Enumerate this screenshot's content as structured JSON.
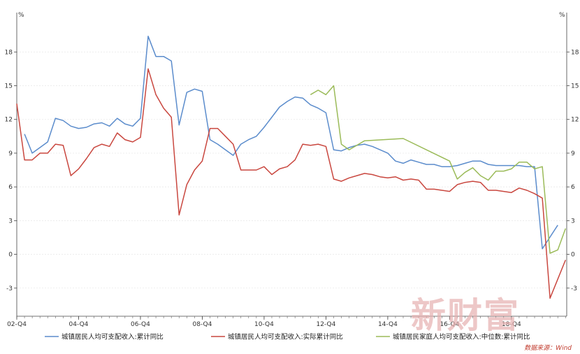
{
  "chart_data": {
    "type": "line",
    "y_unit_left": "%",
    "y_unit_right": "%",
    "ylim": [
      -5.5,
      21.5
    ],
    "yticks": [
      -3,
      0,
      3,
      6,
      9,
      12,
      15,
      18
    ],
    "xlim": [
      0,
      68
    ],
    "x_tick_labels": [
      "02-Q4",
      "04-Q4",
      "06-Q4",
      "08-Q4",
      "10-Q4",
      "12-Q4",
      "14-Q4",
      "16-Q4",
      "18-Q4"
    ],
    "x_tick_positions": [
      0,
      8,
      16,
      24,
      32,
      40,
      48,
      56,
      64
    ],
    "grid": true,
    "legend_position": "bottom",
    "series": [
      {
        "name": "城镇居民人均可支配收入:累计同比",
        "color": "#5b8ccc",
        "points": [
          [
            1,
            10.7
          ],
          [
            2,
            9.0
          ],
          [
            3,
            9.5
          ],
          [
            4,
            10.0
          ],
          [
            5,
            12.1
          ],
          [
            6,
            11.9
          ],
          [
            7,
            11.4
          ],
          [
            8,
            11.2
          ],
          [
            9,
            11.3
          ],
          [
            10,
            11.6
          ],
          [
            11,
            11.7
          ],
          [
            12,
            11.4
          ],
          [
            13,
            12.1
          ],
          [
            14,
            11.6
          ],
          [
            15,
            11.4
          ],
          [
            16,
            12.1
          ],
          [
            17,
            19.4
          ],
          [
            18,
            17.6
          ],
          [
            19,
            17.6
          ],
          [
            20,
            17.2
          ],
          [
            21,
            11.5
          ],
          [
            22,
            14.4
          ],
          [
            23,
            14.7
          ],
          [
            24,
            14.5
          ],
          [
            25,
            10.2
          ],
          [
            26,
            9.8
          ],
          [
            27,
            9.3
          ],
          [
            28,
            8.8
          ],
          [
            29,
            9.8
          ],
          [
            30,
            10.2
          ],
          [
            31,
            10.5
          ],
          [
            32,
            11.3
          ],
          [
            33,
            12.2
          ],
          [
            34,
            13.1
          ],
          [
            35,
            13.6
          ],
          [
            36,
            14.0
          ],
          [
            37,
            13.9
          ],
          [
            38,
            13.3
          ],
          [
            39,
            13.0
          ],
          [
            40,
            12.6
          ],
          [
            41,
            9.3
          ],
          [
            42,
            9.2
          ],
          [
            43,
            9.5
          ],
          [
            44,
            9.7
          ],
          [
            45,
            9.8
          ],
          [
            46,
            9.6
          ],
          [
            47,
            9.3
          ],
          [
            48,
            9.0
          ],
          [
            49,
            8.3
          ],
          [
            50,
            8.1
          ],
          [
            51,
            8.4
          ],
          [
            52,
            8.2
          ],
          [
            53,
            8.0
          ],
          [
            54,
            8.0
          ],
          [
            55,
            7.8
          ],
          [
            56,
            7.8
          ],
          [
            57,
            7.9
          ],
          [
            58,
            8.1
          ],
          [
            59,
            8.3
          ],
          [
            60,
            8.3
          ],
          [
            61,
            8.0
          ],
          [
            62,
            7.9
          ],
          [
            63,
            7.9
          ],
          [
            64,
            7.9
          ],
          [
            65,
            7.9
          ],
          [
            66,
            7.8
          ],
          [
            67,
            7.8
          ],
          [
            68,
            0.5
          ],
          [
            70,
            2.6
          ]
        ]
      },
      {
        "name": "城镇居民人均可支配收入:实际累计同比",
        "color": "#c9473f",
        "points": [
          [
            0,
            13.4
          ],
          [
            1,
            8.4
          ],
          [
            2,
            8.4
          ],
          [
            3,
            9.0
          ],
          [
            4,
            9.0
          ],
          [
            5,
            9.8
          ],
          [
            6,
            9.7
          ],
          [
            7,
            7.0
          ],
          [
            8,
            7.6
          ],
          [
            9,
            8.5
          ],
          [
            10,
            9.5
          ],
          [
            11,
            9.8
          ],
          [
            12,
            9.6
          ],
          [
            13,
            10.8
          ],
          [
            14,
            10.2
          ],
          [
            15,
            10.0
          ],
          [
            16,
            10.4
          ],
          [
            17,
            16.5
          ],
          [
            18,
            14.2
          ],
          [
            19,
            13.0
          ],
          [
            20,
            12.2
          ],
          [
            21,
            3.5
          ],
          [
            22,
            6.2
          ],
          [
            23,
            7.5
          ],
          [
            24,
            8.3
          ],
          [
            25,
            11.2
          ],
          [
            26,
            11.2
          ],
          [
            27,
            10.5
          ],
          [
            28,
            9.8
          ],
          [
            29,
            7.5
          ],
          [
            30,
            7.5
          ],
          [
            31,
            7.5
          ],
          [
            32,
            7.8
          ],
          [
            33,
            7.1
          ],
          [
            34,
            7.6
          ],
          [
            35,
            7.8
          ],
          [
            36,
            8.4
          ],
          [
            37,
            9.8
          ],
          [
            38,
            9.7
          ],
          [
            39,
            9.8
          ],
          [
            40,
            9.6
          ],
          [
            41,
            6.7
          ],
          [
            42,
            6.5
          ],
          [
            43,
            6.8
          ],
          [
            44,
            7.0
          ],
          [
            45,
            7.2
          ],
          [
            46,
            7.1
          ],
          [
            47,
            6.9
          ],
          [
            48,
            6.8
          ],
          [
            49,
            6.9
          ],
          [
            50,
            6.6
          ],
          [
            51,
            6.7
          ],
          [
            52,
            6.6
          ],
          [
            53,
            5.8
          ],
          [
            54,
            5.8
          ],
          [
            55,
            5.7
          ],
          [
            56,
            5.6
          ],
          [
            57,
            6.2
          ],
          [
            58,
            6.4
          ],
          [
            59,
            6.5
          ],
          [
            60,
            6.4
          ],
          [
            61,
            5.7
          ],
          [
            62,
            5.7
          ],
          [
            63,
            5.6
          ],
          [
            64,
            5.5
          ],
          [
            65,
            5.9
          ],
          [
            66,
            5.7
          ],
          [
            67,
            5.4
          ],
          [
            68,
            5.0
          ],
          [
            69,
            -3.9
          ],
          [
            71,
            -0.5
          ]
        ]
      },
      {
        "name": "城镇居民家庭人均可支配收入:中位数:累计同比",
        "color": "#9bbb59",
        "points": [
          [
            38,
            14.2
          ],
          [
            39,
            14.6
          ],
          [
            40,
            14.2
          ],
          [
            41,
            15.0
          ],
          [
            42,
            9.8
          ],
          [
            43,
            9.3
          ],
          [
            45,
            10.1
          ],
          [
            50,
            10.3
          ],
          [
            56,
            8.3
          ],
          [
            57,
            6.7
          ],
          [
            58,
            7.3
          ],
          [
            59,
            7.7
          ],
          [
            60,
            7.0
          ],
          [
            61,
            6.6
          ],
          [
            62,
            7.4
          ],
          [
            63,
            7.4
          ],
          [
            64,
            7.6
          ],
          [
            65,
            8.2
          ],
          [
            66,
            8.2
          ],
          [
            67,
            7.6
          ],
          [
            68,
            7.8
          ],
          [
            69,
            0.1
          ],
          [
            70,
            0.4
          ],
          [
            71,
            2.3
          ]
        ]
      }
    ]
  },
  "source_label": "数据来源：Wind",
  "watermark": "新财富"
}
